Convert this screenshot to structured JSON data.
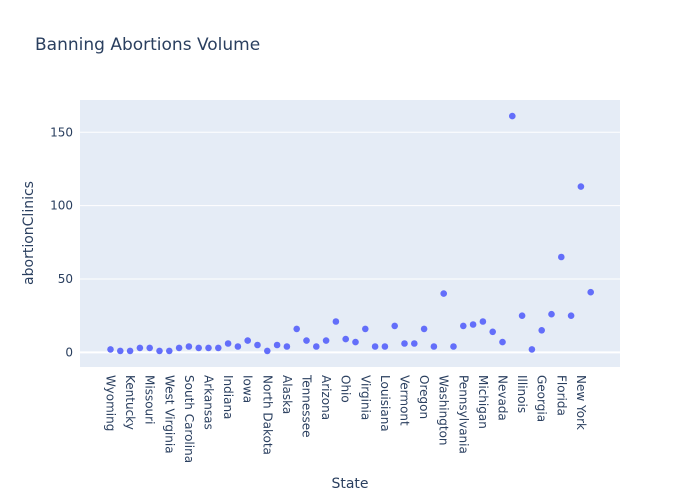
{
  "chart_data": {
    "type": "scatter",
    "title": "Banning Abortions Volume",
    "xlabel": "State",
    "ylabel": "abortionClinics",
    "ylim": [
      -10,
      172
    ],
    "yticks": [
      0,
      50,
      100,
      150
    ],
    "grid": true,
    "legend": "none",
    "marker_color": "#636efa",
    "plot_bg": "#e5ecf6",
    "points": [
      {
        "state": "Wyoming",
        "value": 2
      },
      {
        "state": "",
        "value": 1
      },
      {
        "state": "Kentucky",
        "value": 1
      },
      {
        "state": "",
        "value": 3
      },
      {
        "state": "Missouri",
        "value": 3
      },
      {
        "state": "",
        "value": 1
      },
      {
        "state": "West Virginia",
        "value": 1
      },
      {
        "state": "",
        "value": 3
      },
      {
        "state": "South Carolina",
        "value": 4
      },
      {
        "state": "",
        "value": 3
      },
      {
        "state": "Arkansas",
        "value": 3
      },
      {
        "state": "",
        "value": 3
      },
      {
        "state": "Indiana",
        "value": 6
      },
      {
        "state": "",
        "value": 4
      },
      {
        "state": "Iowa",
        "value": 8
      },
      {
        "state": "",
        "value": 5
      },
      {
        "state": "North Dakota",
        "value": 1
      },
      {
        "state": "",
        "value": 5
      },
      {
        "state": "Alaska",
        "value": 4
      },
      {
        "state": "",
        "value": 16
      },
      {
        "state": "Tennessee",
        "value": 8
      },
      {
        "state": "",
        "value": 4
      },
      {
        "state": "Arizona",
        "value": 8
      },
      {
        "state": "",
        "value": 21
      },
      {
        "state": "Ohio",
        "value": 9
      },
      {
        "state": "",
        "value": 7
      },
      {
        "state": "Virginia",
        "value": 16
      },
      {
        "state": "",
        "value": 4
      },
      {
        "state": "Louisiana",
        "value": 4
      },
      {
        "state": "",
        "value": 18
      },
      {
        "state": "Vermont",
        "value": 6
      },
      {
        "state": "",
        "value": 6
      },
      {
        "state": "Oregon",
        "value": 16
      },
      {
        "state": "",
        "value": 4
      },
      {
        "state": "Washington",
        "value": 40
      },
      {
        "state": "",
        "value": 4
      },
      {
        "state": "Pennsylvania",
        "value": 18
      },
      {
        "state": "",
        "value": 19
      },
      {
        "state": "Michigan",
        "value": 21
      },
      {
        "state": "",
        "value": 14
      },
      {
        "state": "Nevada",
        "value": 7
      },
      {
        "state": "",
        "value": 161
      },
      {
        "state": "Illinois",
        "value": 25
      },
      {
        "state": "",
        "value": 2
      },
      {
        "state": "Georgia",
        "value": 15
      },
      {
        "state": "",
        "value": 26
      },
      {
        "state": "Florida",
        "value": 65
      },
      {
        "state": "",
        "value": 25
      },
      {
        "state": "New York",
        "value": 113
      },
      {
        "state": "",
        "value": 41
      }
    ]
  }
}
